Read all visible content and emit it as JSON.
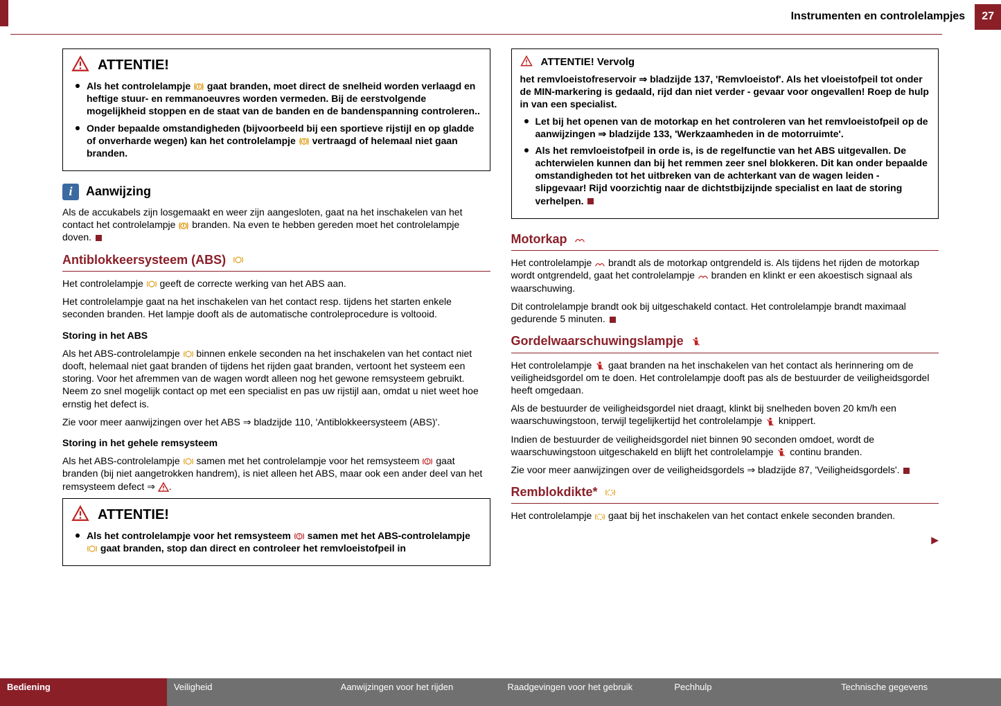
{
  "colors": {
    "brand": "#8a1f28",
    "tab_inactive": "#707070",
    "icon_amber": "#e0a020",
    "icon_red": "#c02020",
    "info_blue": "#3b6aa0",
    "text": "#000000",
    "page_bg": "#ffffff"
  },
  "header": {
    "chapter_title": "Instrumenten en controlelampjes",
    "page_number": "27"
  },
  "left": {
    "attention1": {
      "title": "ATTENTIE!",
      "items": [
        "Als het controlelampje ⟨tpms⟩ gaat branden, moet direct de snelheid worden verlaagd en heftige stuur- en remmanoeuvres worden vermeden. Bij de eerstvolgende mogelijkheid stoppen en de staat van de banden en de bandenspanning controleren..",
        "Onder bepaalde omstandigheden (bijvoorbeeld bij een sportieve rijstijl en op gladde of onverharde wegen) kan het controlelampje ⟨tpms⟩ vertraagd of helemaal niet gaan branden."
      ]
    },
    "aanwijzing": {
      "title": "Aanwijzing",
      "body": "Als de accukabels zijn losgemaakt en weer zijn aangesloten, gaat na het inschakelen van het contact het controlelampje ⟨tpms⟩ branden. Na even te hebben gereden moet het controlelampje doven."
    },
    "abs": {
      "title": "Antiblokkeersysteem (ABS)",
      "p1": "Het controlelampje ⟨abs⟩ geeft de correcte werking van het ABS aan.",
      "p2": "Het controlelampje gaat na het inschakelen van het contact resp. tijdens het starten enkele seconden branden. Het lampje dooft als de automatische controleprocedure is voltooid.",
      "sub1_title": "Storing in het ABS",
      "sub1_body": "Als het ABS-controlelampje ⟨abs⟩ binnen enkele seconden na het inschakelen van het contact niet dooft, helemaal niet gaat branden of tijdens het rijden gaat branden, vertoont het systeem een storing. Voor het afremmen van de wagen wordt alleen nog het gewone remsysteem gebruikt. Neem zo snel mogelijk contact op met een specialist en pas uw rijstijl aan, omdat u niet weet hoe ernstig het defect is.",
      "sub1_ref": "Zie voor meer aanwijzingen over het ABS ⇒ bladzijde 110, 'Antiblokkeersysteem (ABS)'.",
      "sub2_title": "Storing in het gehele remsysteem",
      "sub2_body": "Als het ABS-controlelampje ⟨abs⟩ samen met het controlelampje voor het remsysteem ⟨brake⟩ gaat branden (bij niet aangetrokken handrem), is niet alleen het ABS, maar ook een ander deel van het remsysteem defect ⇒ ⟨warn⟩."
    },
    "attention2": {
      "title": "ATTENTIE!",
      "items": [
        "Als het controlelampje voor het remsysteem ⟨brake⟩ samen met het ABS-controlelampje ⟨abs⟩ gaat branden, stop dan direct en controleer het remvloeistofpeil in"
      ]
    }
  },
  "right": {
    "attention_cont": {
      "title": "ATTENTIE! Vervolg",
      "lead": "het remvloeistofreservoir ⇒ bladzijde 137, 'Remvloeistof'. Als het vloeistofpeil tot onder de MIN-markering is gedaald, rijd dan niet verder - gevaar voor ongevallen! Roep de hulp in van een specialist.",
      "items": [
        "Let bij het openen van de motorkap en het controleren van het remvloeistofpeil op de aanwijzingen ⇒ bladzijde 133, 'Werkzaamheden in de motorruimte'.",
        "Als het remvloeistofpeil in orde is, is de regelfunctie van het ABS uitgevallen. De achterwielen kunnen dan bij het remmen zeer snel blokkeren. Dit kan onder bepaalde omstandigheden tot het uitbreken van de achterkant van de wagen leiden - slipgevaar! Rijd voorzichtig naar de dichtstbijzijnde specialist en laat de storing verhelpen."
      ]
    },
    "motorkap": {
      "title": "Motorkap",
      "p1": "Het controlelampje ⟨hood⟩ brandt als de motorkap ontgrendeld is. Als tijdens het rijden de motorkap wordt ontgrendeld, gaat het controlelampje ⟨hood⟩ branden en klinkt er een akoestisch signaal als waarschuwing.",
      "p2": "Dit controlelampje brandt ook bij uitgeschakeld contact. Het controlelampje brandt maximaal gedurende 5 minuten."
    },
    "gordel": {
      "title": "Gordelwaarschuwingslampje",
      "p1": "Het controlelampje ⟨belt⟩ gaat branden na het inschakelen van het contact als herinnering om de veiligheidsgordel om te doen. Het controlelampje dooft pas als de bestuurder de veiligheidsgordel heeft omgedaan.",
      "p2": "Als de bestuurder de veiligheidsgordel niet draagt, klinkt bij snelheden boven 20 km/h een waarschuwingstoon, terwijl tegelijkertijd het controlelampje ⟨belt⟩ knippert.",
      "p3": "Indien de bestuurder de veiligheidsgordel niet binnen 90 seconden omdoet, wordt de waarschuwingstoon uitgeschakeld en blijft het controlelampje ⟨belt⟩ continu branden.",
      "p4": "Zie voor meer aanwijzingen over de veiligheidsgordels ⇒ bladzijde 87, 'Veiligheidsgordels'."
    },
    "remblok": {
      "title": "Remblokdikte*",
      "p1": "Het controlelampje ⟨pad⟩ gaat bij het inschakelen van het contact enkele seconden branden."
    }
  },
  "footer": {
    "tabs": [
      {
        "label": "Bediening",
        "active": true
      },
      {
        "label": "Veiligheid",
        "active": false
      },
      {
        "label": "Aanwijzingen voor het rijden",
        "active": false
      },
      {
        "label": "Raadgevingen voor het gebruik",
        "active": false
      },
      {
        "label": "Pechhulp",
        "active": false
      },
      {
        "label": "Technische gegevens",
        "active": false
      }
    ]
  },
  "icons": {
    "tpms": {
      "color": "#e0a020"
    },
    "abs": {
      "color": "#e0a020"
    },
    "brake": {
      "color": "#c02020"
    },
    "warn": {
      "color": "#c02020"
    },
    "hood": {
      "color": "#c02020"
    },
    "belt": {
      "color": "#c02020"
    },
    "pad": {
      "color": "#e0a020"
    }
  }
}
